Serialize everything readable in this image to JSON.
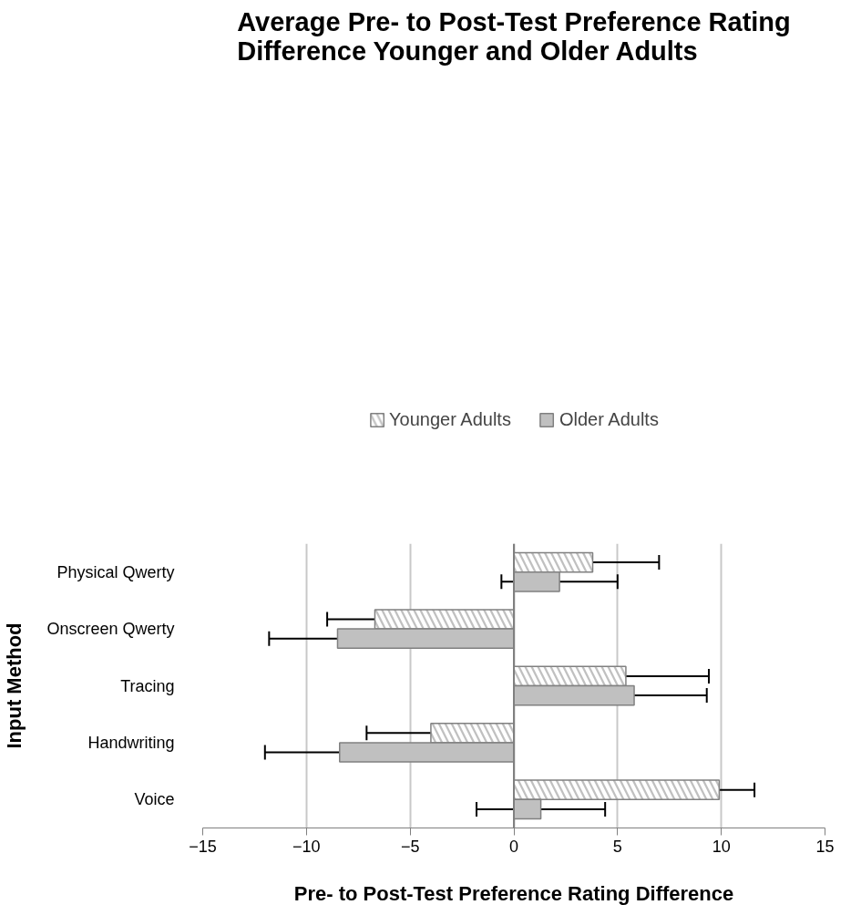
{
  "chart_data": {
    "type": "bar",
    "orientation": "horizontal",
    "title": "Average Pre- to Post-Test Preference Rating Difference Younger and Older Adults",
    "xlabel": "Pre- to Post-Test Preference Rating Difference",
    "ylabel": "Input Method",
    "categories": [
      "Physical Qwerty",
      "Onscreen Qwerty",
      "Tracing",
      "Handwriting",
      "Voice"
    ],
    "series": [
      {
        "name": "Younger Adults",
        "color": "#c0c0c0",
        "values": [
          3.8,
          -6.7,
          5.4,
          -4.0,
          9.9
        ],
        "errors": [
          3.2,
          2.3,
          4.0,
          3.1,
          1.7
        ]
      },
      {
        "name": "Older Adults",
        "color": "#c0c0c0",
        "values": [
          2.2,
          -8.5,
          5.8,
          -8.4,
          1.3
        ],
        "errors": [
          2.8,
          3.3,
          3.5,
          3.6,
          3.1
        ]
      }
    ],
    "xlim": [
      -15,
      15
    ],
    "xticks": [
      -15,
      -10,
      -5,
      0,
      5,
      10,
      15
    ],
    "grid": "x",
    "legend": "top"
  }
}
